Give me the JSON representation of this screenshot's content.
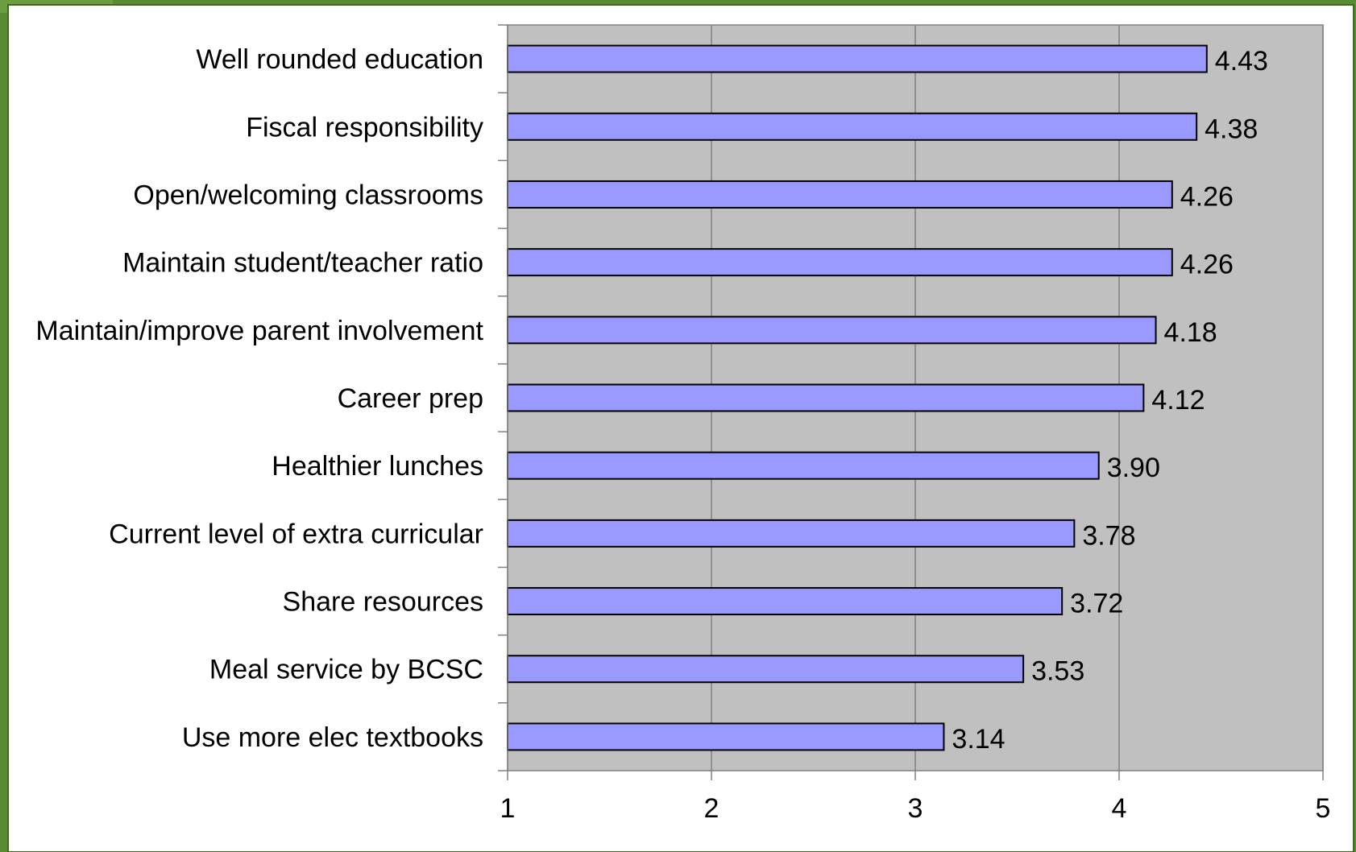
{
  "chart_data": {
    "type": "bar",
    "orientation": "horizontal",
    "categories": [
      "Well rounded education",
      "Fiscal responsibility",
      "Open/welcoming classrooms",
      "Maintain student/teacher ratio",
      "Maintain/improve parent involvement",
      "Career prep",
      "Healthier lunches",
      "Current level of extra curricular",
      "Share resources",
      "Meal service by BCSC",
      "Use more elec textbooks"
    ],
    "values": [
      4.43,
      4.38,
      4.26,
      4.26,
      4.18,
      4.12,
      3.9,
      3.78,
      3.72,
      3.53,
      3.14
    ],
    "data_labels": [
      "4.43",
      "4.38",
      "4.26",
      "4.26",
      "4.18",
      "4.12",
      "3.90",
      "3.78",
      "3.72",
      "3.53",
      "3.14"
    ],
    "xlim": [
      1,
      5
    ],
    "xticks": [
      "1",
      "2",
      "3",
      "4",
      "5"
    ],
    "grid": true,
    "legend": "none",
    "colors": {
      "bar": "#9999ff",
      "bar_border": "#000000",
      "plot_background": "#c0c0c0",
      "frame": "#5a8a32"
    }
  }
}
